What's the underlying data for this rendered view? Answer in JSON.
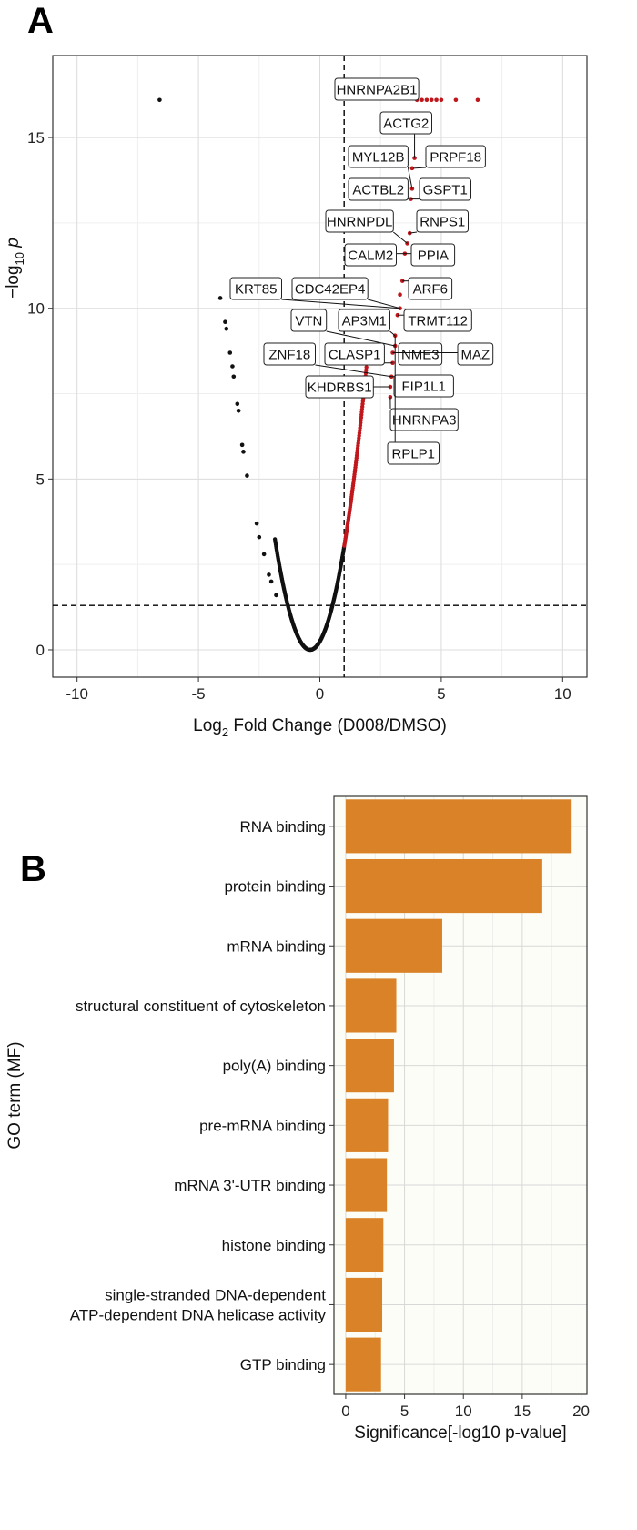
{
  "figure": {
    "panel_a_letter": "A",
    "panel_b_letter": "B"
  },
  "chart_data": [
    {
      "type": "scatter",
      "panel": "A",
      "xlabel_main": "Log",
      "xlabel_sub": "2",
      "xlabel_rest": " Fold Change (D008/DMSO)",
      "ylabel_main": "−log",
      "ylabel_sub": "10",
      "ylabel_rest": " p",
      "xlim": [
        -11,
        11
      ],
      "ylim": [
        -0.8,
        17.4
      ],
      "xticks": [
        -10,
        -5,
        0,
        5,
        10
      ],
      "yticks": [
        0,
        5,
        10,
        15
      ],
      "grid": true,
      "thresholds": {
        "log2fc": 1.0,
        "neg_log10_p": 1.3
      },
      "colors": {
        "significant": "#c0171c",
        "not_significant": "#111111",
        "threshold_line": "#000000"
      },
      "points": [
        {
          "x": -6.6,
          "y": 16.1
        },
        {
          "x": 4.0,
          "y": 16.1,
          "sig": true
        },
        {
          "x": 4.2,
          "y": 16.1,
          "sig": true
        },
        {
          "x": 4.4,
          "y": 16.1,
          "sig": true
        },
        {
          "x": 4.6,
          "y": 16.1,
          "sig": true
        },
        {
          "x": 4.8,
          "y": 16.1,
          "sig": true
        },
        {
          "x": 5.0,
          "y": 16.1,
          "sig": true
        },
        {
          "x": 5.6,
          "y": 16.1,
          "sig": true
        },
        {
          "x": 6.5,
          "y": 16.1,
          "sig": true
        },
        {
          "x": 3.9,
          "y": 14.4,
          "sig": true
        },
        {
          "x": 3.8,
          "y": 14.1,
          "sig": true
        },
        {
          "x": 3.8,
          "y": 13.5,
          "sig": true
        },
        {
          "x": 3.75,
          "y": 13.2,
          "sig": true
        },
        {
          "x": 3.7,
          "y": 12.2,
          "sig": true
        },
        {
          "x": 3.6,
          "y": 11.9,
          "sig": true
        },
        {
          "x": 3.5,
          "y": 11.6,
          "sig": true
        },
        {
          "x": 3.4,
          "y": 10.8,
          "sig": true
        },
        {
          "x": 3.3,
          "y": 10.4,
          "sig": true
        },
        {
          "x": 3.3,
          "y": 10.0,
          "sig": true
        },
        {
          "x": 3.2,
          "y": 9.8,
          "sig": true
        },
        {
          "x": 3.1,
          "y": 9.2,
          "sig": true
        },
        {
          "x": 3.1,
          "y": 8.9,
          "sig": true
        },
        {
          "x": 3.0,
          "y": 8.7,
          "sig": true
        },
        {
          "x": 3.0,
          "y": 8.4,
          "sig": true
        },
        {
          "x": 2.95,
          "y": 8.0,
          "sig": true
        },
        {
          "x": 2.9,
          "y": 7.7,
          "sig": true
        },
        {
          "x": 2.9,
          "y": 7.4,
          "sig": true
        },
        {
          "x": -4.1,
          "y": 10.3
        },
        {
          "x": -3.9,
          "y": 9.6
        },
        {
          "x": -3.85,
          "y": 9.4
        },
        {
          "x": -3.7,
          "y": 8.7
        },
        {
          "x": -3.6,
          "y": 8.3
        },
        {
          "x": -3.55,
          "y": 8.0
        },
        {
          "x": -3.4,
          "y": 7.2
        },
        {
          "x": -3.35,
          "y": 7.0
        },
        {
          "x": -3.2,
          "y": 6.0
        },
        {
          "x": -3.15,
          "y": 5.8
        },
        {
          "x": -3.0,
          "y": 5.1
        },
        {
          "x": -2.6,
          "y": 3.7
        },
        {
          "x": -2.5,
          "y": 3.3
        },
        {
          "x": -2.3,
          "y": 2.8
        },
        {
          "x": -2.1,
          "y": 2.2
        },
        {
          "x": -2.0,
          "y": 2.0
        },
        {
          "x": -1.8,
          "y": 1.6
        }
      ],
      "labels": [
        {
          "text": "HNRNPA2B1",
          "x": 3.6,
          "y": 16.1
        },
        {
          "text": "ACTG2",
          "x": 3.9,
          "y": 14.4
        },
        {
          "text": "MYL12B",
          "x": 3.8,
          "y": 13.5
        },
        {
          "text": "PRPF18",
          "x": 3.85,
          "y": 14.1
        },
        {
          "text": "ACTBL2",
          "x": 3.7,
          "y": 13.2
        },
        {
          "text": "GSPT1",
          "x": 3.75,
          "y": 13.2
        },
        {
          "text": "HNRNPDL",
          "x": 3.6,
          "y": 11.9
        },
        {
          "text": "RNPS1",
          "x": 3.7,
          "y": 12.2
        },
        {
          "text": "CALM2",
          "x": 3.5,
          "y": 11.6
        },
        {
          "text": "PPIA",
          "x": 3.5,
          "y": 11.6
        },
        {
          "text": "KRT85",
          "x": 3.3,
          "y": 10.0
        },
        {
          "text": "CDC42EP4",
          "x": 3.3,
          "y": 10.0
        },
        {
          "text": "ARF6",
          "x": 3.4,
          "y": 10.8
        },
        {
          "text": "TRMT112",
          "x": 3.2,
          "y": 9.8
        },
        {
          "text": "VTN",
          "x": 3.1,
          "y": 8.9
        },
        {
          "text": "AP3M1",
          "x": 3.1,
          "y": 9.2
        },
        {
          "text": "NME3",
          "x": 3.0,
          "y": 8.7
        },
        {
          "text": "MAZ",
          "x": 3.0,
          "y": 8.7
        },
        {
          "text": "ZNF18",
          "x": 2.95,
          "y": 8.0
        },
        {
          "text": "CLASP1",
          "x": 3.0,
          "y": 8.4
        },
        {
          "text": "FIP1L1",
          "x": 2.95,
          "y": 8.0
        },
        {
          "text": "KHDRBS1",
          "x": 2.9,
          "y": 7.7
        },
        {
          "text": "HNRNPA3",
          "x": 2.9,
          "y": 7.4
        },
        {
          "text": "RPLP1",
          "x": 3.1,
          "y": 9.2
        }
      ]
    },
    {
      "type": "bar",
      "panel": "B",
      "orientation": "horizontal",
      "xlabel": "Significance[-log10 p-value]",
      "ylabel": "GO term (MF)",
      "xlim": [
        -1,
        20.5
      ],
      "xticks": [
        0,
        5,
        10,
        15,
        20
      ],
      "grid": true,
      "bar_color": "#d98227",
      "categories": [
        [
          "RNA binding"
        ],
        [
          "protein binding"
        ],
        [
          "mRNA binding"
        ],
        [
          "structural constituent of cytoskeleton"
        ],
        [
          "poly(A) binding"
        ],
        [
          "pre-mRNA binding"
        ],
        [
          "mRNA 3'-UTR binding"
        ],
        [
          "histone binding"
        ],
        [
          "single-stranded DNA-dependent",
          "ATP-dependent DNA helicase activity"
        ],
        [
          "GTP binding"
        ]
      ],
      "values": [
        19.2,
        16.7,
        8.2,
        4.3,
        4.1,
        3.6,
        3.5,
        3.2,
        3.1,
        3.0
      ]
    }
  ]
}
